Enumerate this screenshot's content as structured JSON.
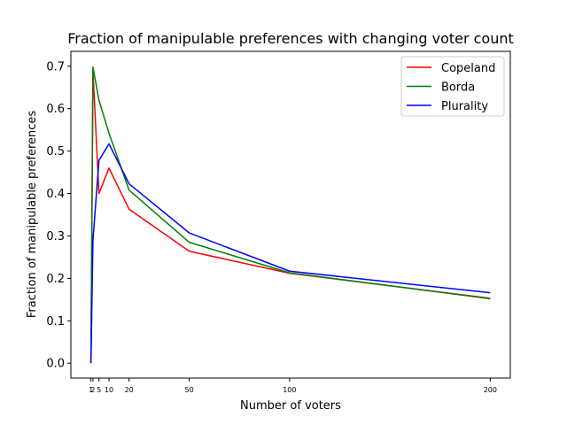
{
  "chart_data": {
    "type": "line",
    "title": "Fraction of manipulable preferences with changing voter count",
    "xlabel": "Number of voters",
    "ylabel": "Fraction of manipulable preferences",
    "x": [
      1,
      2,
      5,
      10,
      20,
      50,
      100,
      200
    ],
    "xticks": [
      1,
      2,
      5,
      10,
      20,
      50,
      100,
      200
    ],
    "xtick_labels": [
      "1",
      "2",
      "5",
      "10",
      "20",
      "50",
      "100",
      "200"
    ],
    "xlim": [
      -9,
      210
    ],
    "yticks": [
      0.0,
      0.1,
      0.2,
      0.3,
      0.4,
      0.5,
      0.6,
      0.7
    ],
    "ytick_labels": [
      "0.0",
      "0.1",
      "0.2",
      "0.3",
      "0.4",
      "0.5",
      "0.6",
      "0.7"
    ],
    "ylim": [
      -0.035,
      0.735
    ],
    "grid": false,
    "legend_position": "top-right",
    "series": [
      {
        "name": "Copeland",
        "color": "#ff0000",
        "values": [
          0.0,
          0.69,
          0.4,
          0.46,
          0.363,
          0.264,
          0.212,
          0.153
        ]
      },
      {
        "name": "Borda",
        "color": "#008000",
        "values": [
          0.0,
          0.698,
          0.62,
          0.542,
          0.408,
          0.285,
          0.213,
          0.152
        ]
      },
      {
        "name": "Plurality",
        "color": "#0000ff",
        "values": [
          0.0,
          0.29,
          0.478,
          0.517,
          0.423,
          0.307,
          0.217,
          0.166
        ]
      }
    ]
  }
}
